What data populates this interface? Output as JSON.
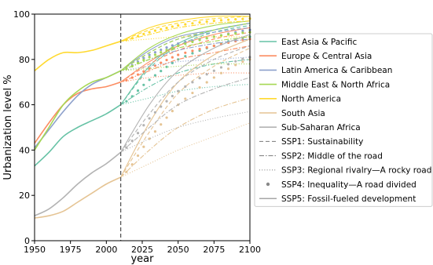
{
  "chart_data": {
    "type": "line",
    "xlabel": "year",
    "ylabel": "Urbanization level %",
    "xlim": [
      1950,
      2100
    ],
    "ylim": [
      0,
      100
    ],
    "xticks": [
      1950,
      1975,
      2000,
      2025,
      2050,
      2075,
      2100
    ],
    "yticks": [
      0,
      20,
      40,
      60,
      80,
      100
    ],
    "divider_year": 2010,
    "grid": false,
    "legend_placement": "right, outside plot",
    "regions": [
      {
        "name": "East Asia & Pacific",
        "color": "#66c2a5",
        "historical": {
          "x": [
            1950,
            1960,
            1970,
            1980,
            1990,
            2000,
            2010
          ],
          "y": [
            33,
            39,
            46,
            50,
            53,
            56,
            60
          ]
        },
        "ssp": {
          "SSP1": [
            60,
            76,
            86,
            92,
            95
          ],
          "SSP2": [
            60,
            68,
            74,
            78,
            80
          ],
          "SSP3": [
            60,
            63,
            66,
            68,
            69
          ],
          "SSP4": [
            60,
            71,
            80,
            86,
            90
          ],
          "SSP5": [
            60,
            77,
            87,
            93,
            96
          ]
        }
      },
      {
        "name": "Europe & Central Asia",
        "color": "#fc8d62",
        "historical": {
          "x": [
            1950,
            1960,
            1970,
            1980,
            1990,
            2000,
            2010
          ],
          "y": [
            43,
            52,
            60,
            65,
            67,
            68,
            70
          ]
        },
        "ssp": {
          "SSP1": [
            70,
            78,
            84,
            89,
            92
          ],
          "SSP2": [
            70,
            75,
            80,
            83,
            86
          ],
          "SSP3": [
            70,
            72,
            73,
            74,
            74
          ],
          "SSP4": [
            70,
            76,
            82,
            86,
            89
          ],
          "SSP5": [
            70,
            79,
            86,
            91,
            94
          ]
        }
      },
      {
        "name": "Latin America & Caribbean",
        "color": "#8da0cb",
        "historical": {
          "x": [
            1950,
            1960,
            1970,
            1980,
            1990,
            2000,
            2010
          ],
          "y": [
            41,
            49,
            57,
            64,
            69,
            72,
            75
          ]
        },
        "ssp": {
          "SSP1": [
            75,
            83,
            89,
            92,
            94
          ],
          "SSP2": [
            75,
            80,
            84,
            87,
            89
          ],
          "SSP3": [
            75,
            77,
            79,
            80,
            81
          ],
          "SSP4": [
            75,
            82,
            87,
            90,
            93
          ],
          "SSP5": [
            75,
            84,
            90,
            93,
            96
          ]
        }
      },
      {
        "name": "Middle East & North Africa",
        "color": "#a6d854",
        "historical": {
          "x": [
            1950,
            1960,
            1970,
            1980,
            1990,
            2000,
            2010
          ],
          "y": [
            40,
            50,
            60,
            66,
            70,
            72,
            75
          ]
        },
        "ssp": {
          "SSP1": [
            75,
            83,
            89,
            93,
            96
          ],
          "SSP2": [
            75,
            80,
            85,
            88,
            90
          ],
          "SSP3": [
            75,
            76,
            77,
            78,
            78
          ],
          "SSP4": [
            75,
            81,
            86,
            90,
            92
          ],
          "SSP5": [
            75,
            85,
            91,
            95,
            97
          ]
        }
      },
      {
        "name": "North America",
        "color": "#ffd92f",
        "historical": {
          "x": [
            1950,
            1960,
            1970,
            1980,
            1990,
            2000,
            2010
          ],
          "y": [
            75,
            80,
            83,
            83,
            84,
            86,
            88
          ]
        },
        "ssp": {
          "SSP1": [
            88,
            93,
            96,
            98,
            99
          ],
          "SSP2": [
            88,
            91,
            94,
            96,
            97
          ],
          "SSP3": [
            88,
            89,
            90,
            90,
            90
          ],
          "SSP4": [
            88,
            92,
            95,
            97,
            98
          ],
          "SSP5": [
            88,
            94,
            97,
            99,
            99
          ]
        }
      },
      {
        "name": "South Asia",
        "color": "#e5c494",
        "historical": {
          "x": [
            1950,
            1960,
            1970,
            1980,
            1990,
            2000,
            2010
          ],
          "y": [
            10,
            11,
            13,
            17,
            21,
            25,
            28
          ]
        },
        "ssp": {
          "SSP1": [
            28,
            48,
            65,
            77,
            85
          ],
          "SSP2": [
            28,
            40,
            50,
            58,
            63
          ],
          "SSP3": [
            28,
            34,
            40,
            46,
            52
          ],
          "SSP4": [
            28,
            45,
            60,
            72,
            80
          ],
          "SSP5": [
            28,
            52,
            70,
            82,
            89
          ]
        }
      },
      {
        "name": "Sub-Saharan Africa",
        "color": "#b3b3b3",
        "historical": {
          "x": [
            1950,
            1960,
            1970,
            1980,
            1990,
            2000,
            2010
          ],
          "y": [
            11,
            14,
            19,
            25,
            30,
            34,
            39
          ]
        },
        "ssp": {
          "SSP1": [
            39,
            56,
            70,
            80,
            86
          ],
          "SSP2": [
            39,
            50,
            60,
            67,
            72
          ],
          "SSP3": [
            39,
            45,
            50,
            54,
            57
          ],
          "SSP4": [
            39,
            54,
            66,
            75,
            81
          ],
          "SSP5": [
            39,
            60,
            75,
            85,
            91
          ]
        }
      }
    ],
    "ssp_x": [
      2010,
      2030,
      2050,
      2075,
      2100
    ],
    "scenarios": [
      {
        "id": "SSP1",
        "name": "SSP1: Sustainability",
        "style": "dashed"
      },
      {
        "id": "SSP2",
        "name": "SSP2: Middle of the road",
        "style": "dashdot"
      },
      {
        "id": "SSP3",
        "name": "SSP3: Regional rivalry—A rocky road",
        "style": "dotted"
      },
      {
        "id": "SSP4",
        "name": "SSP4: Inequality—A road divided",
        "style": "dots"
      },
      {
        "id": "SSP5",
        "name": "SSP5: Fossil-fueled development",
        "style": "solid"
      }
    ]
  }
}
